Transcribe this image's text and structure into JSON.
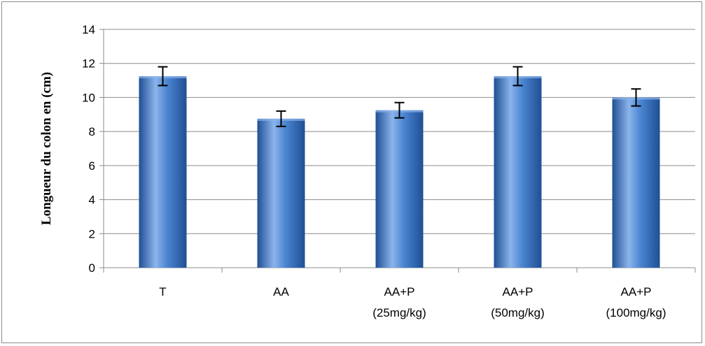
{
  "chart_data": {
    "type": "bar",
    "categories": [
      [
        "T"
      ],
      [
        "AA"
      ],
      [
        "AA+P",
        "(25mg/kg)"
      ],
      [
        "AA+P",
        "(50mg/kg)"
      ],
      [
        "AA+P",
        "(100mg/kg)"
      ]
    ],
    "values": [
      11.25,
      8.75,
      9.25,
      11.25,
      10.0
    ],
    "errors": [
      0.55,
      0.45,
      0.45,
      0.55,
      0.5
    ],
    "title": "",
    "xlabel": "",
    "ylabel": "Longueur du colon en (cm)",
    "ylim": [
      0,
      14
    ],
    "yticks": [
      0,
      2,
      4,
      6,
      8,
      10,
      12,
      14
    ],
    "grid": true,
    "legend": "none",
    "colors": {
      "bar_dark": "#1f4f94",
      "bar_mid": "#4a84d0",
      "bar_light": "#8bb4ec",
      "grid": "#8c8c8c",
      "axis": "#8c8c8c",
      "error_bar": "#000000"
    }
  }
}
